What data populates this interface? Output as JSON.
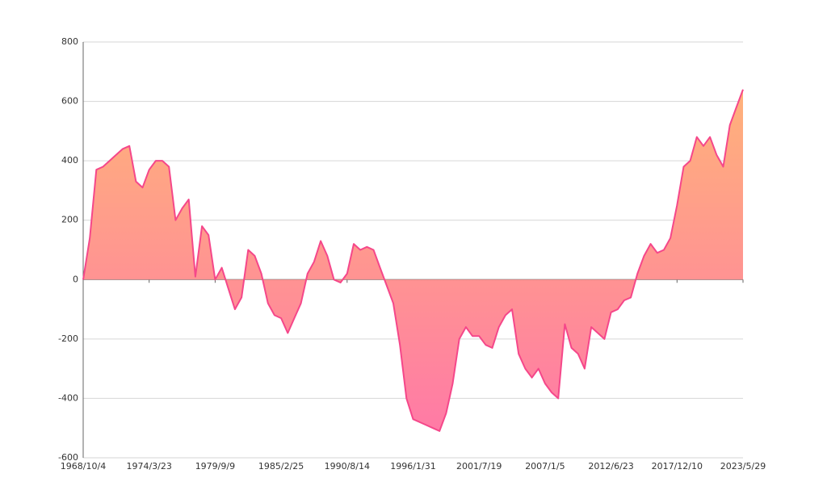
{
  "chart_data": {
    "type": "area",
    "categories": [
      "1968/10/4",
      null,
      null,
      null,
      null,
      null,
      null,
      null,
      null,
      null,
      "1974/3/23",
      null,
      null,
      null,
      null,
      null,
      null,
      null,
      null,
      null,
      "1979/9/9",
      null,
      null,
      null,
      null,
      null,
      null,
      null,
      null,
      null,
      "1985/2/25",
      null,
      null,
      null,
      null,
      null,
      null,
      null,
      null,
      null,
      "1990/8/14",
      null,
      null,
      null,
      null,
      null,
      null,
      null,
      null,
      null,
      "1996/1/31",
      null,
      null,
      null,
      null,
      null,
      null,
      null,
      null,
      null,
      "2001/7/19",
      null,
      null,
      null,
      null,
      null,
      null,
      null,
      null,
      null,
      "2007/1/5",
      null,
      null,
      null,
      null,
      null,
      null,
      null,
      null,
      null,
      "2012/6/23",
      null,
      null,
      null,
      null,
      null,
      null,
      null,
      null,
      null,
      "2017/12/10",
      null,
      null,
      null,
      null,
      null,
      null,
      null,
      null,
      null,
      "2023/5/29"
    ],
    "values": [
      0,
      140,
      370,
      380,
      400,
      420,
      440,
      450,
      330,
      310,
      370,
      400,
      400,
      380,
      200,
      240,
      270,
      10,
      180,
      150,
      0,
      40,
      -30,
      -100,
      -60,
      100,
      80,
      20,
      -80,
      -120,
      -130,
      -180,
      -130,
      -80,
      20,
      60,
      130,
      80,
      0,
      -10,
      20,
      120,
      100,
      110,
      100,
      40,
      -20,
      -80,
      -220,
      -400,
      -470,
      -480,
      -490,
      -500,
      -510,
      -450,
      -350,
      -200,
      -160,
      -190,
      -190,
      -220,
      -230,
      -160,
      -120,
      -100,
      -250,
      -300,
      -330,
      -300,
      -350,
      -380,
      -400,
      -150,
      -230,
      -250,
      -300,
      -160,
      -180,
      -200,
      -110,
      -100,
      -70,
      -60,
      20,
      80,
      120,
      90,
      100,
      140,
      250,
      380,
      400,
      480,
      450,
      480,
      420,
      380,
      520,
      580,
      640
    ],
    "color": "#f5478a",
    "area_gradient": [
      "#ffb27a",
      "#ff7aa6"
    ],
    "ylim": [
      -600,
      800
    ],
    "yticks": [
      -600,
      -400,
      -200,
      0,
      200,
      400,
      600,
      800
    ],
    "grid": true
  }
}
